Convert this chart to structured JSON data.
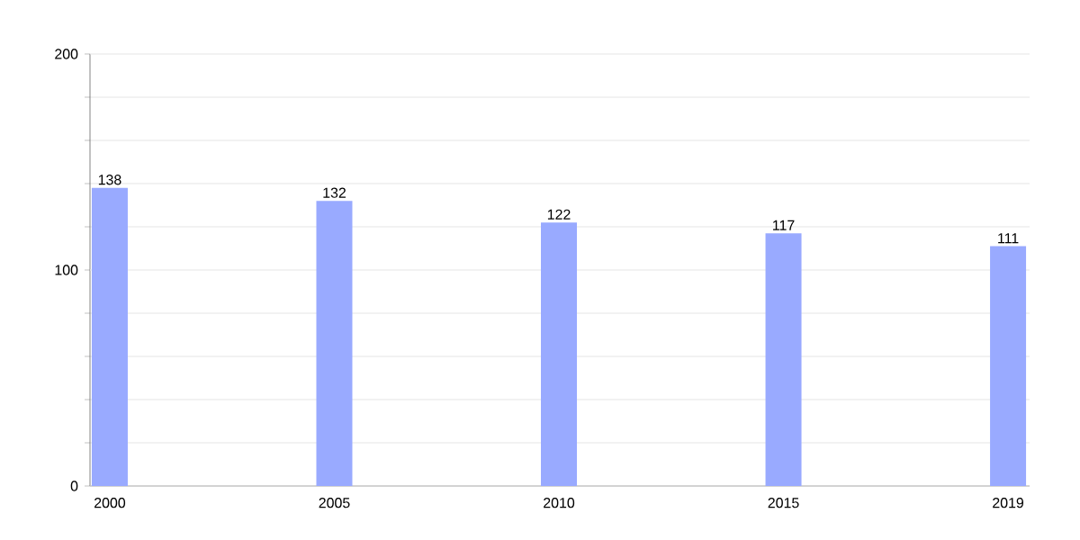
{
  "chart_data": {
    "type": "bar",
    "categories": [
      "2000",
      "2005",
      "2010",
      "2015",
      "2019"
    ],
    "values": [
      138,
      132,
      122,
      117,
      111
    ],
    "color": "#99aaff",
    "ylim": [
      0,
      200
    ],
    "yticks": [
      0,
      {
        "value": 20,
        "label": null
      },
      {
        "value": 40,
        "label": null
      },
      {
        "value": 60,
        "label": null
      },
      {
        "value": 80,
        "label": null
      },
      100,
      {
        "value": 120,
        "label": null
      },
      {
        "value": 140,
        "label": null
      },
      {
        "value": 160,
        "label": null
      },
      {
        "value": 180,
        "label": null
      },
      200
    ],
    "grid": "y",
    "data_labels": true
  }
}
